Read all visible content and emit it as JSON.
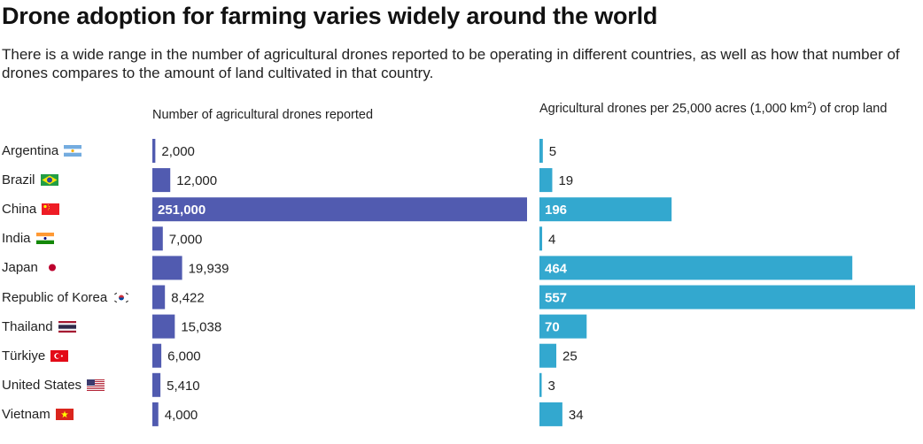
{
  "title": "Drone adoption for farming varies widely around the world",
  "subtitle": "There is a wide range in the number of agricultural drones reported to be operating in different countries, as well as how that number of drones compares to the amount of land cultivated in that country.",
  "chart_data": [
    {
      "type": "bar",
      "orientation": "horizontal",
      "title": "Number of agricultural drones reported",
      "categories": [
        "Argentina",
        "Brazil",
        "China",
        "India",
        "Japan",
        "Republic of Korea",
        "Thailand",
        "Türkiye",
        "United States",
        "Vietnam"
      ],
      "values": [
        2000,
        12000,
        251000,
        7000,
        19939,
        8422,
        15038,
        6000,
        5410,
        4000
      ],
      "value_labels": [
        "2,000",
        "12,000",
        "251,000",
        "7,000",
        "19,939",
        "8,422",
        "15,038",
        "6,000",
        "5,410",
        "4,000"
      ],
      "xlim": [
        0,
        251000
      ],
      "color": "#515bb0",
      "grid": false,
      "legend": "none"
    },
    {
      "type": "bar",
      "orientation": "horizontal",
      "title": "Agricultural drones per 25,000 acres (1,000 km²) of crop land",
      "title_parts": {
        "before": "Agricultural drones per 25,000 acres (1,000 km",
        "sup": "2",
        "after": ") of crop land"
      },
      "categories": [
        "Argentina",
        "Brazil",
        "China",
        "India",
        "Japan",
        "Republic of Korea",
        "Thailand",
        "Türkiye",
        "United States",
        "Vietnam"
      ],
      "values": [
        5,
        19,
        196,
        4,
        464,
        557,
        70,
        25,
        3,
        34
      ],
      "value_labels": [
        "5",
        "19",
        "196",
        "4",
        "464",
        "557",
        "70",
        "25",
        "3",
        "34"
      ],
      "xlim": [
        0,
        557
      ],
      "color": "#33a8cf",
      "grid": false,
      "legend": "none"
    }
  ],
  "countries": [
    {
      "name": "Argentina",
      "flag": "argentina-flag-icon"
    },
    {
      "name": "Brazil",
      "flag": "brazil-flag-icon"
    },
    {
      "name": "China",
      "flag": "china-flag-icon"
    },
    {
      "name": "India",
      "flag": "india-flag-icon"
    },
    {
      "name": "Japan",
      "flag": "japan-flag-icon"
    },
    {
      "name": "Republic of Korea",
      "flag": "south-korea-flag-icon"
    },
    {
      "name": "Thailand",
      "flag": "thailand-flag-icon"
    },
    {
      "name": "Türkiye",
      "flag": "turkey-flag-icon"
    },
    {
      "name": "United States",
      "flag": "usa-flag-icon"
    },
    {
      "name": "Vietnam",
      "flag": "vietnam-flag-icon"
    }
  ]
}
